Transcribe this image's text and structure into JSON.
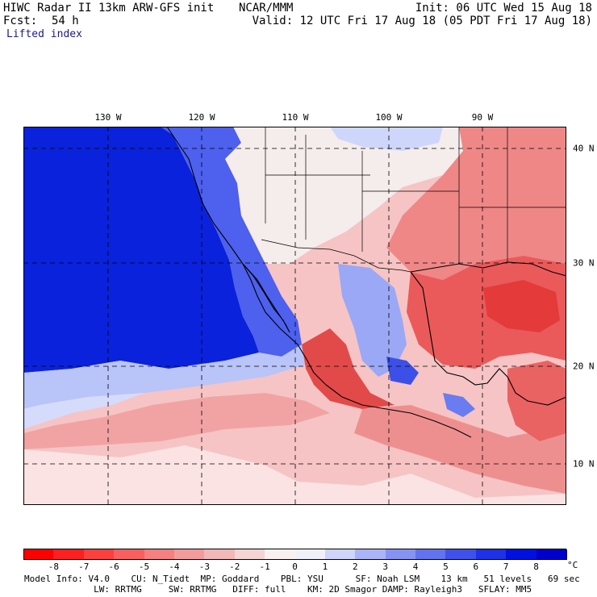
{
  "header": {
    "title": "HIWC Radar II 13km ARW-GFS init",
    "org": "NCAR/MMM",
    "init": "Init: 06 UTC Wed 15 Aug 18",
    "fcst_label": "Fcst:",
    "fcst_value": "54 h",
    "valid": "Valid: 12 UTC Fri 17 Aug 18 (05 PDT Fri 17 Aug 18)",
    "field": "Lifted index"
  },
  "map": {
    "longitude_labels": [
      "130 W",
      "120 W",
      "110 W",
      "100 W",
      "90 W"
    ],
    "latitude_labels": [
      "40 N",
      "30 N",
      "20 N",
      "10 N"
    ],
    "regions": {
      "pacific": "#0a1fd9",
      "coastal_blue": "#5a6ef0",
      "light_blue": "#c9d2fb",
      "near_zero": "#fce6e6",
      "light_red": "#f6b7b7",
      "medium_red": "#ef7d7d",
      "strong_red": "#e84545"
    }
  },
  "colorbar": {
    "labels": [
      "-8",
      "-7",
      "-6",
      "-5",
      "-4",
      "-3",
      "-2",
      "-1",
      "0",
      "1",
      "2",
      "3",
      "4",
      "5",
      "6",
      "7",
      "8"
    ],
    "unit": "°C",
    "colors": [
      "#ff0000",
      "#fe2020",
      "#fb4040",
      "#f86060",
      "#f58080",
      "#f39c9c",
      "#f2b8b8",
      "#f4d4d4",
      "#fbf0f0",
      "#f0f0fb",
      "#cfd5fb",
      "#aab4f7",
      "#8793f2",
      "#6372ee",
      "#3f51ea",
      "#1e31e4",
      "#0010e0",
      "#0000cc"
    ]
  },
  "footer": {
    "line1": "Model Info: V4.0    CU: N_Tiedt  MP: Goddard    PBL: YSU      SF: Noah LSM    13 km   51 levels   69 sec",
    "line2": "             LW: RRTMG     SW: RRTMG   DIFF: full    KM: 2D Smagor DAMP: Rayleigh3   SFLAY: MM5"
  }
}
